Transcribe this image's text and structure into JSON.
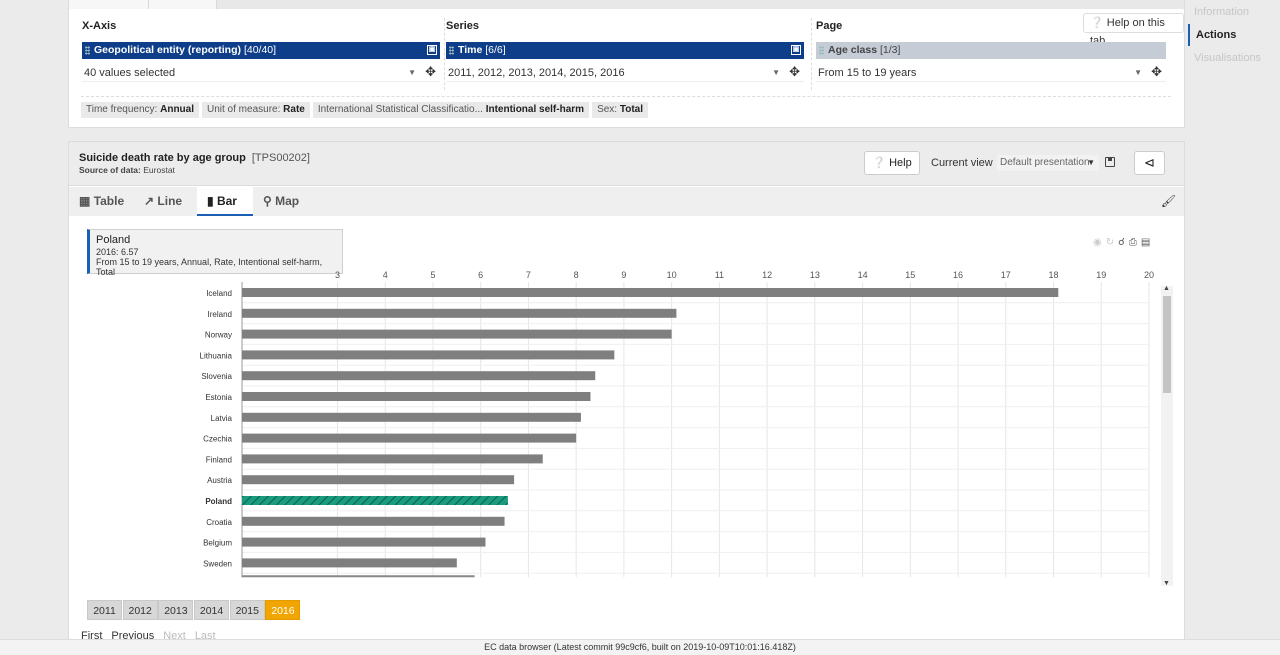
{
  "right_nav": {
    "items": [
      "Information",
      "Actions",
      "Visualisations"
    ],
    "active": "Actions"
  },
  "config": {
    "help_on_tab": "Help on this tab",
    "xaxis": {
      "title": "X-Axis",
      "dim_name": "Geopolitical entity (reporting)",
      "dim_count": "[40/40]",
      "selection": "40 values selected"
    },
    "series": {
      "title": "Series",
      "dim_name": "Time",
      "dim_count": "[6/6]",
      "selection": "2011, 2012, 2013, 2014, 2015, 2016"
    },
    "page": {
      "title": "Page",
      "dim_name": "Age class",
      "dim_count": "[1/3]",
      "selection": "From 15 to 19 years"
    },
    "filters": [
      {
        "label": "Time frequency:",
        "value": "Annual"
      },
      {
        "label": "Unit of measure:",
        "value": "Rate"
      },
      {
        "label": "International Statistical Classificatio...",
        "value": "Intentional self-harm"
      },
      {
        "label": "Sex:",
        "value": "Total"
      }
    ]
  },
  "viz": {
    "title": "Suicide death rate by age group",
    "code": "[TPS00202]",
    "source_label": "Source of data:",
    "source_value": "Eurostat",
    "help_label": "Help",
    "current_view_label": "Current view",
    "current_view_value": "Default presentation",
    "tabs": [
      "Table",
      "Line",
      "Bar",
      "Map"
    ],
    "active_tab": "Bar",
    "tooltip": {
      "country": "Poland",
      "value_line": "2016: 6.57",
      "detail": "From 15 to 19 years, Annual, Rate, Intentional self-harm, Total"
    },
    "years": [
      "2011",
      "2012",
      "2013",
      "2014",
      "2015",
      "2016"
    ],
    "active_year": "2016",
    "pager": [
      "First",
      "Previous",
      "Next",
      "Last"
    ]
  },
  "colors": {
    "bar": "#7f7f7f",
    "highlight": "#1a9c7e",
    "accent": "#0e3e8a",
    "year_active": "#f0a500"
  },
  "chart_data": {
    "type": "bar",
    "orientation": "horizontal",
    "series_name": "2016",
    "xlim": [
      1,
      20
    ],
    "xticks": [
      3,
      4,
      5,
      6,
      7,
      8,
      9,
      10,
      11,
      12,
      13,
      14,
      15,
      16,
      17,
      18,
      19,
      20
    ],
    "categories": [
      "Iceland",
      "Ireland",
      "Norway",
      "Lithuania",
      "Slovenia",
      "Estonia",
      "Latvia",
      "Czechia",
      "Finland",
      "Austria",
      "Poland",
      "Croatia",
      "Belgium",
      "Sweden"
    ],
    "values": [
      18.1,
      10.1,
      10.0,
      8.8,
      8.4,
      8.3,
      8.1,
      8.0,
      7.3,
      6.7,
      6.57,
      6.5,
      6.1,
      5.5
    ],
    "highlight": "Poland",
    "grid": true
  },
  "footer": "EC data browser (Latest commit 99c9cf6, built on 2019-10-09T10:01:16.418Z)"
}
